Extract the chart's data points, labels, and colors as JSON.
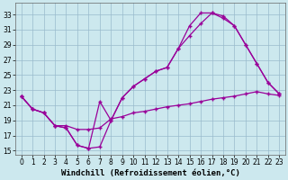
{
  "xlabel": "Windchill (Refroidissement éolien,°C)",
  "ylabel": "",
  "bg_color": "#cce8ee",
  "grid_color": "#99bbcc",
  "line_color": "#990099",
  "xlim": [
    -0.5,
    23.5
  ],
  "ylim": [
    14.5,
    34.5
  ],
  "xticks": [
    0,
    1,
    2,
    3,
    4,
    5,
    6,
    7,
    8,
    9,
    10,
    11,
    12,
    13,
    14,
    15,
    16,
    17,
    18,
    19,
    20,
    21,
    22,
    23
  ],
  "yticks": [
    15,
    17,
    19,
    21,
    23,
    25,
    27,
    29,
    31,
    33
  ],
  "curve1_x": [
    0,
    1,
    2,
    3,
    4,
    5,
    6,
    7,
    8,
    9,
    10,
    11,
    12,
    13,
    14,
    15,
    16,
    17,
    18,
    19,
    20,
    21,
    22,
    23
  ],
  "curve1_y": [
    22.2,
    20.5,
    20.0,
    18.3,
    18.0,
    15.7,
    15.3,
    15.5,
    19.0,
    22.0,
    23.5,
    24.5,
    25.5,
    26.0,
    28.5,
    31.5,
    33.2,
    33.2,
    32.5,
    31.5,
    29.0,
    26.5,
    24.0,
    22.5
  ],
  "curve2_x": [
    0,
    1,
    2,
    3,
    4,
    5,
    6,
    7,
    8,
    9,
    10,
    11,
    12,
    13,
    14,
    15,
    16,
    17,
    18,
    19,
    20,
    21,
    22,
    23
  ],
  "curve2_y": [
    22.2,
    20.5,
    20.0,
    18.3,
    18.0,
    15.7,
    15.3,
    21.5,
    19.0,
    22.0,
    23.5,
    24.5,
    25.5,
    26.0,
    28.5,
    30.2,
    31.8,
    33.2,
    32.8,
    31.5,
    29.0,
    26.5,
    24.0,
    22.5
  ],
  "curve3_x": [
    0,
    1,
    2,
    3,
    4,
    5,
    6,
    7,
    8,
    9,
    10,
    11,
    12,
    13,
    14,
    15,
    16,
    17,
    18,
    19,
    20,
    21,
    22,
    23
  ],
  "curve3_y": [
    22.2,
    20.5,
    20.0,
    18.3,
    18.3,
    17.8,
    17.8,
    18.0,
    19.2,
    19.5,
    20.0,
    20.2,
    20.5,
    20.8,
    21.0,
    21.2,
    21.5,
    21.8,
    22.0,
    22.2,
    22.5,
    22.8,
    22.5,
    22.3
  ],
  "tick_fontsize": 5.5,
  "xlabel_fontsize": 6.5
}
